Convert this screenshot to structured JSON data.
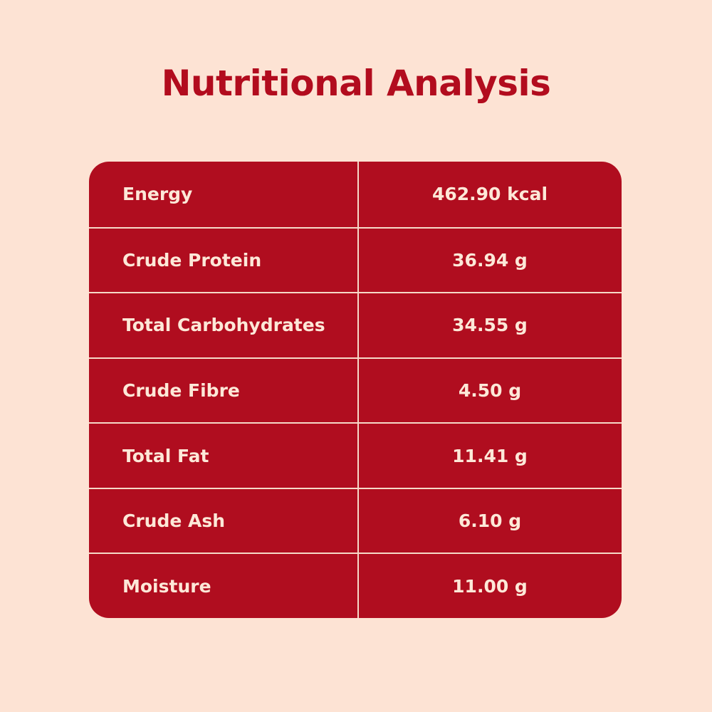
{
  "header": {
    "title": "Nutritional Analysis"
  },
  "table": {
    "rows": [
      [
        "Energy",
        "462.90 kcal"
      ],
      [
        "Crude Protein",
        "36.94 g"
      ],
      [
        "Total Carbohydrates",
        "34.55 g"
      ],
      [
        "Crude Fibre",
        "4.50 g"
      ],
      [
        "Total Fat",
        "11.41 g"
      ],
      [
        "Crude Ash",
        "6.10 g"
      ],
      [
        "Moisture",
        "11.00 g"
      ]
    ]
  }
}
